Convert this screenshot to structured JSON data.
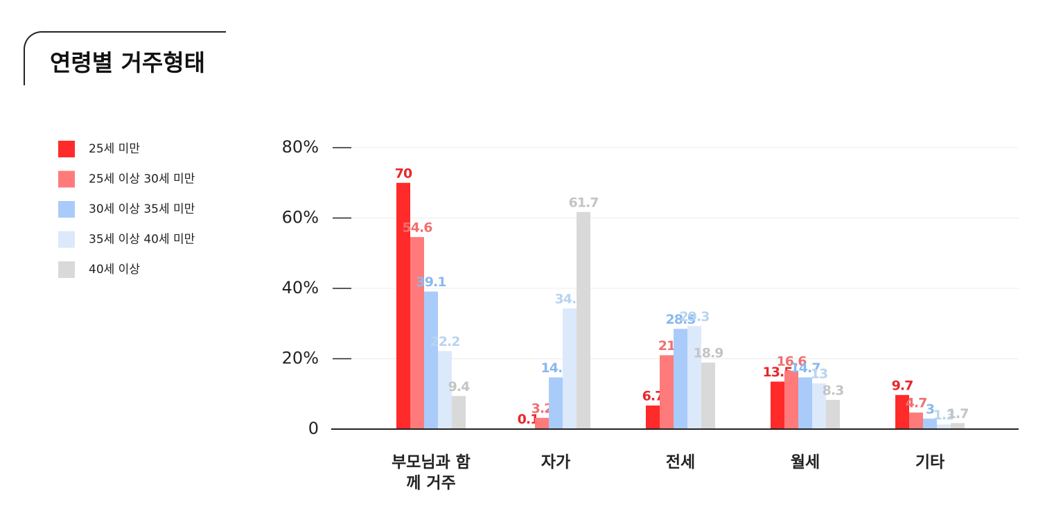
{
  "chart_data": {
    "type": "bar",
    "title": "연령별 거주형태",
    "categories": [
      "부모님과 함께 거주",
      "자가",
      "전세",
      "월세",
      "기타"
    ],
    "series": [
      {
        "name": "25세 미만",
        "color": "#ff2a2a",
        "label_color": "#e8262a",
        "values": [
          70,
          0.1,
          6.7,
          13.5,
          9.7
        ]
      },
      {
        "name": "25세 이상 30세 미만",
        "color": "#ff7b7b",
        "label_color": "#f07070",
        "values": [
          54.6,
          3.2,
          21,
          16.6,
          4.7
        ]
      },
      {
        "name": "30세 이상 35세 미만",
        "color": "#a9cbfa",
        "label_color": "#8ab8f0",
        "values": [
          39.1,
          14.7,
          28.5,
          14.7,
          3
        ]
      },
      {
        "name": "35세 이상 40세 미만",
        "color": "#dce9fb",
        "label_color": "#b8d4f0",
        "values": [
          22.2,
          34.3,
          29.3,
          13,
          1.3
        ]
      },
      {
        "name": "40세 이상",
        "color": "#d9d9d9",
        "label_color": "#c4c4c4",
        "values": [
          9.4,
          61.7,
          18.9,
          8.3,
          1.7
        ]
      }
    ],
    "ylim": [
      0,
      80
    ],
    "yticks": [
      0,
      {
        "value": 20,
        "label": "20%"
      },
      {
        "value": 40,
        "label": "40%"
      },
      {
        "value": 60,
        "label": "60%"
      },
      {
        "value": 80,
        "label": "80%"
      }
    ],
    "grid": true
  }
}
